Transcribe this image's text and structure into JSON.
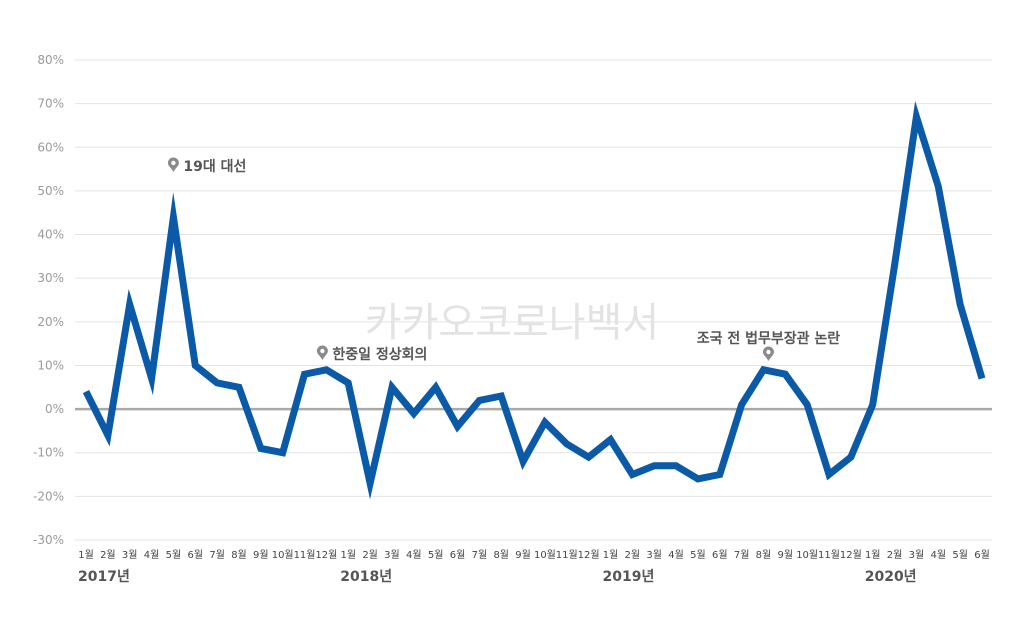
{
  "chart_data": {
    "type": "line",
    "ylabel": "",
    "xlabel": "",
    "ylim": [
      -30,
      80
    ],
    "y_ticks": [
      {
        "value": 80,
        "label": "80%"
      },
      {
        "value": 70,
        "label": "70%"
      },
      {
        "value": 60,
        "label": "60%"
      },
      {
        "value": 50,
        "label": "50%"
      },
      {
        "value": 40,
        "label": "40%"
      },
      {
        "value": 30,
        "label": "30%"
      },
      {
        "value": 20,
        "label": "20%"
      },
      {
        "value": 10,
        "label": "10%"
      },
      {
        "value": 0,
        "label": "0%"
      },
      {
        "value": -10,
        "label": "-10%"
      },
      {
        "value": -20,
        "label": "-20%"
      },
      {
        "value": -30,
        "label": "-30%"
      }
    ],
    "grid": true,
    "categories": [
      "1월",
      "2월",
      "3월",
      "4월",
      "5월",
      "6월",
      "7월",
      "8월",
      "9월",
      "10월",
      "11월",
      "12월",
      "1월",
      "2월",
      "3월",
      "4월",
      "5월",
      "6월",
      "7월",
      "8월",
      "9월",
      "10월",
      "11월",
      "12월",
      "1월",
      "2월",
      "3월",
      "4월",
      "5월",
      "6월",
      "7월",
      "8월",
      "9월",
      "10월",
      "11월",
      "12월",
      "1월",
      "2월",
      "3월",
      "4월",
      "5월",
      "6월"
    ],
    "years": [
      {
        "label": "2017년",
        "start_index": 0
      },
      {
        "label": "2018년",
        "start_index": 12
      },
      {
        "label": "2019년",
        "start_index": 24
      },
      {
        "label": "2020년",
        "start_index": 36
      }
    ],
    "series": [
      {
        "color": "#0a5aa8",
        "values": [
          4,
          -6,
          24,
          7,
          44,
          10,
          6,
          5,
          -9,
          -10,
          8,
          9,
          6,
          -17,
          5,
          -1,
          5,
          -4,
          2,
          3,
          -12,
          -3,
          -8,
          -11,
          -7,
          -15,
          -13,
          -13,
          -16,
          -15,
          1,
          9,
          8,
          1,
          -15,
          -11,
          1,
          33,
          67,
          51,
          24,
          7
        ]
      }
    ],
    "annotations": [
      {
        "label": "19대 대선",
        "index": 4,
        "value": 44
      },
      {
        "label": "한중일 정상회의",
        "index": 11,
        "value": 9
      },
      {
        "label": "조국 전 법무부장관 논란",
        "index": 31,
        "value": 9
      }
    ],
    "watermark": "카카오코로나백서"
  }
}
